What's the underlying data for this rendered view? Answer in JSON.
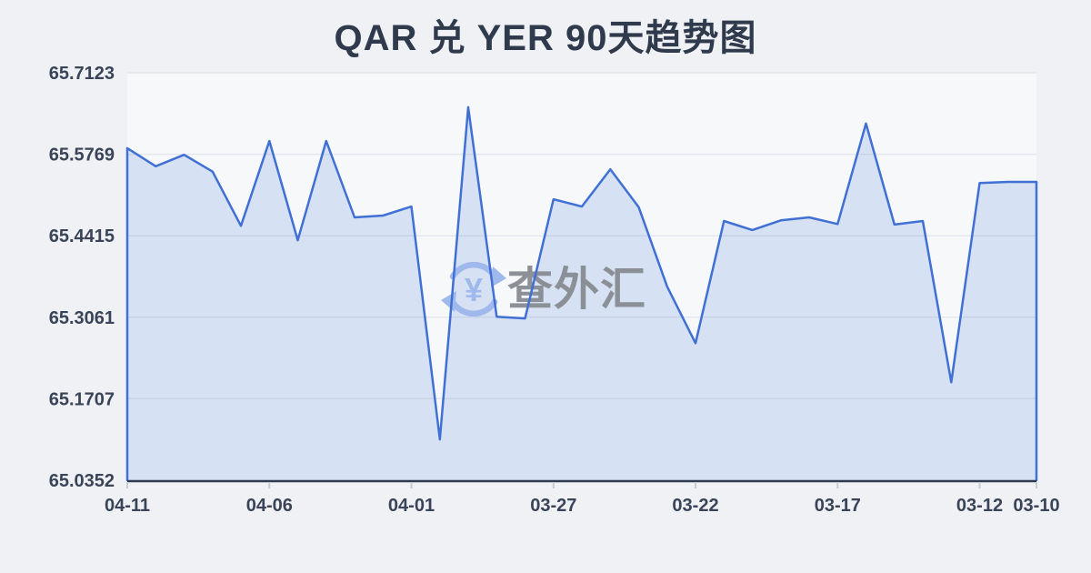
{
  "watermark": {
    "text": "查外汇",
    "symbol": "¥",
    "icon": "currency-exchange-icon"
  },
  "colors": {
    "page_bg": "#eff1f4",
    "plot_bg": "#f6f8fa",
    "grid": "#e4e7ed",
    "line": "#4070d4",
    "fill": "rgba(64,112,212,0.17)",
    "axis": "#2e3a50",
    "tick": "#c6cbd4",
    "label": "#3a4458",
    "title": "#2f3a4d",
    "watermark_text": "#85898f",
    "watermark_icon": "#a0b9ec"
  },
  "chart_data": {
    "type": "area",
    "title": "QAR 兑 YER 90天趋势图",
    "xlabel": "",
    "ylabel": "",
    "legend": false,
    "grid": true,
    "x": [
      "04-11",
      "04-10",
      "04-09",
      "04-08",
      "04-07",
      "04-06",
      "04-05",
      "04-04",
      "04-03",
      "04-02",
      "04-01",
      "03-31",
      "03-30",
      "03-29",
      "03-28",
      "03-27",
      "03-26",
      "03-25",
      "03-24",
      "03-23",
      "03-22",
      "03-21",
      "03-20",
      "03-19",
      "03-18",
      "03-17",
      "03-16",
      "03-15",
      "03-14",
      "03-13",
      "03-12",
      "03-11",
      "03-10"
    ],
    "values": [
      65.587,
      65.557,
      65.576,
      65.548,
      65.458,
      65.599,
      65.434,
      65.599,
      65.472,
      65.475,
      65.49,
      65.103,
      65.655,
      65.307,
      65.304,
      65.502,
      65.49,
      65.552,
      65.489,
      65.357,
      65.263,
      65.466,
      65.451,
      65.467,
      65.472,
      65.461,
      65.628,
      65.46,
      65.466,
      65.198,
      65.529,
      65.531,
      65.531
    ],
    "x_tick_indices": [
      0,
      5,
      10,
      15,
      20,
      25,
      30,
      32
    ],
    "x_tick_labels": [
      "04-11",
      "04-06",
      "04-01",
      "03-27",
      "03-22",
      "03-17",
      "03-12",
      "03-10"
    ],
    "y_ticks": [
      "65.7123",
      "65.5769",
      "65.4415",
      "65.3061",
      "65.1707",
      "65.0352"
    ],
    "ylim": [
      65.0352,
      65.7123
    ],
    "x_axis_note": "dates run newest (left) to oldest (right)"
  }
}
